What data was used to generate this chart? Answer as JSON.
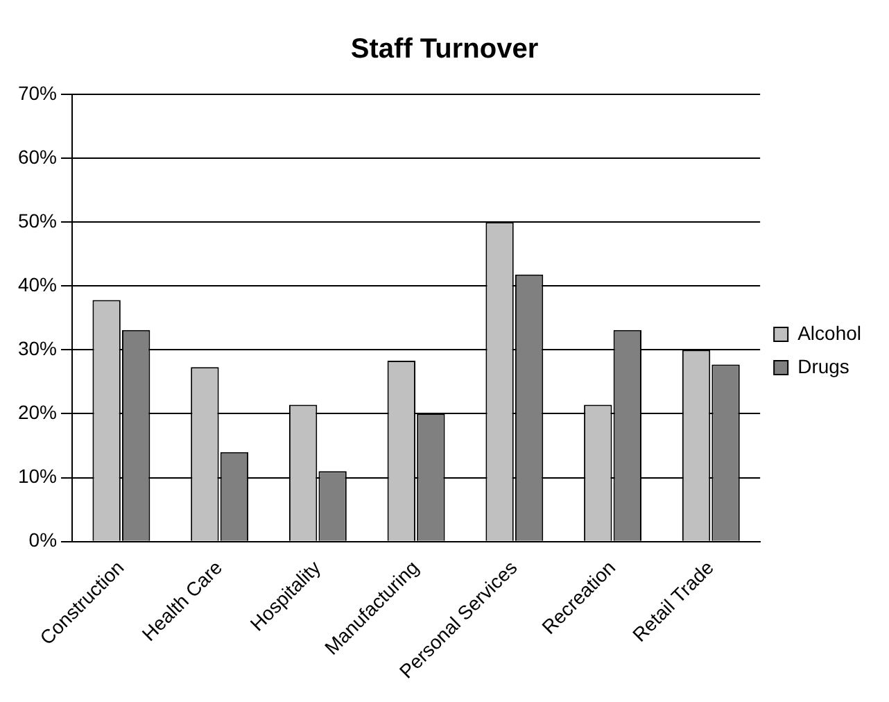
{
  "chart_data": {
    "type": "bar",
    "title": "Staff Turnover",
    "categories": [
      "Construction",
      "Health Care",
      "Hospitality",
      "Manufacturing",
      "Personal Services",
      "Recreation",
      "Retail Trade"
    ],
    "series": [
      {
        "name": "Alcohol",
        "color": "#c0c0c0",
        "values": [
          37.8,
          27.3,
          21.4,
          28.3,
          50,
          21.4,
          30
        ]
      },
      {
        "name": "Drugs",
        "color": "#808080",
        "values": [
          33.1,
          14,
          11,
          20,
          41.8,
          33.1,
          27.7
        ]
      }
    ],
    "ylim": [
      0,
      70
    ],
    "yticks": [
      {
        "value": 0,
        "label": "0%"
      },
      {
        "value": 10,
        "label": "10%"
      },
      {
        "value": 20,
        "label": "20%"
      },
      {
        "value": 30,
        "label": "30%"
      },
      {
        "value": 40,
        "label": "40%"
      },
      {
        "value": 50,
        "label": "50%"
      },
      {
        "value": 60,
        "label": "60%"
      },
      {
        "value": 70,
        "label": "70%"
      }
    ],
    "grid": "y",
    "legend": "right"
  }
}
